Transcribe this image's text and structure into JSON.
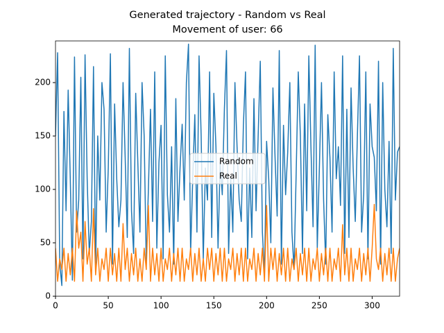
{
  "chart_data": {
    "type": "line",
    "title": "Generated trajectory - Random vs Real",
    "subtitle": "Movement of user: 66",
    "x": [
      0,
      2,
      4,
      6,
      8,
      10,
      12,
      14,
      16,
      18,
      20,
      22,
      24,
      26,
      28,
      30,
      32,
      34,
      36,
      38,
      40,
      42,
      44,
      46,
      48,
      50,
      52,
      54,
      56,
      58,
      60,
      62,
      64,
      66,
      68,
      70,
      72,
      74,
      76,
      78,
      80,
      82,
      84,
      86,
      88,
      90,
      92,
      94,
      96,
      98,
      100,
      102,
      104,
      106,
      108,
      110,
      112,
      114,
      116,
      118,
      120,
      122,
      124,
      126,
      128,
      130,
      132,
      134,
      136,
      138,
      140,
      142,
      144,
      146,
      148,
      150,
      152,
      154,
      156,
      158,
      160,
      162,
      164,
      166,
      168,
      170,
      172,
      174,
      176,
      178,
      180,
      182,
      184,
      186,
      188,
      190,
      192,
      194,
      196,
      198,
      200,
      202,
      204,
      206,
      208,
      210,
      212,
      214,
      216,
      218,
      220,
      222,
      224,
      226,
      228,
      230,
      232,
      234,
      236,
      238,
      240,
      242,
      244,
      246,
      248,
      250,
      252,
      254,
      256,
      258,
      260,
      262,
      264,
      266,
      268,
      270,
      272,
      274,
      276,
      278,
      280,
      282,
      284,
      286,
      288,
      290,
      292,
      294,
      296,
      298,
      300,
      302,
      304,
      306,
      308,
      310,
      312,
      314,
      316,
      318,
      320,
      322,
      324,
      326
    ],
    "series": [
      {
        "name": "Random",
        "color": "#1f77b4",
        "values": [
          150,
          228,
          30,
          10,
          173,
          80,
          193,
          110,
          15,
          224,
          60,
          90,
          205,
          35,
          226,
          110,
          40,
          70,
          215,
          25,
          150,
          90,
          200,
          175,
          60,
          120,
          227,
          30,
          180,
          110,
          65,
          90,
          200,
          130,
          55,
          232,
          80,
          40,
          190,
          125,
          60,
          200,
          150,
          30,
          100,
          175,
          70,
          210,
          45,
          125,
          160,
          35,
          225,
          95,
          60,
          140,
          30,
          185,
          70,
          120,
          161,
          90,
          200,
          236,
          40,
          110,
          170,
          60,
          225,
          150,
          35,
          120,
          90,
          210,
          55,
          190,
          140,
          45,
          125,
          95,
          175,
          230,
          40,
          110,
          60,
          200,
          140,
          90,
          70,
          160,
          210,
          35,
          120,
          55,
          185,
          80,
          150,
          220,
          60,
          20,
          145,
          110,
          50,
          195,
          130,
          75,
          230,
          30,
          160,
          95,
          135,
          200,
          60,
          25,
          115,
          210,
          150,
          40,
          180,
          80,
          225,
          140,
          65,
          235,
          45,
          120,
          200,
          90,
          30,
          170,
          130,
          60,
          210,
          110,
          140,
          85,
          225,
          40,
          175,
          55,
          195,
          120,
          70,
          150,
          225,
          60,
          95,
          210,
          35,
          180,
          140,
          130,
          80,
          220,
          30,
          200,
          100,
          65,
          145,
          40,
          232,
          90,
          135,
          140
        ]
      },
      {
        "name": "Real",
        "color": "#ff7f0e",
        "values": [
          45,
          14,
          35,
          25,
          45,
          14,
          40,
          20,
          45,
          14,
          80,
          45,
          60,
          14,
          70,
          30,
          45,
          14,
          82,
          20,
          45,
          14,
          35,
          25,
          45,
          14,
          45,
          20,
          40,
          14,
          45,
          14,
          68,
          25,
          45,
          14,
          40,
          20,
          45,
          14,
          35,
          14,
          45,
          25,
          85,
          14,
          45,
          20,
          40,
          14,
          45,
          14,
          35,
          25,
          45,
          14,
          40,
          20,
          45,
          14,
          45,
          14,
          35,
          25,
          45,
          14,
          40,
          20,
          45,
          14,
          35,
          14,
          45,
          25,
          45,
          14,
          40,
          20,
          45,
          14,
          45,
          14,
          35,
          25,
          45,
          14,
          40,
          20,
          45,
          14,
          45,
          14,
          35,
          25,
          45,
          14,
          40,
          20,
          45,
          14,
          85,
          14,
          45,
          25,
          45,
          14,
          40,
          20,
          45,
          14,
          45,
          14,
          35,
          25,
          45,
          14,
          40,
          20,
          45,
          14,
          45,
          14,
          35,
          25,
          45,
          14,
          40,
          20,
          45,
          14,
          45,
          14,
          35,
          25,
          45,
          14,
          67,
          20,
          45,
          14,
          45,
          14,
          35,
          25,
          45,
          14,
          40,
          20,
          45,
          14,
          45,
          86,
          35,
          25,
          45,
          14,
          40,
          20,
          45,
          14,
          45,
          14,
          35,
          45
        ]
      }
    ],
    "xlim": [
      0,
      326
    ],
    "ylim": [
      0,
      239
    ],
    "xticks": [
      0,
      50,
      100,
      150,
      200,
      250,
      300
    ],
    "yticks": [
      0,
      50,
      100,
      150,
      200
    ],
    "grid": false,
    "legend": "center"
  }
}
